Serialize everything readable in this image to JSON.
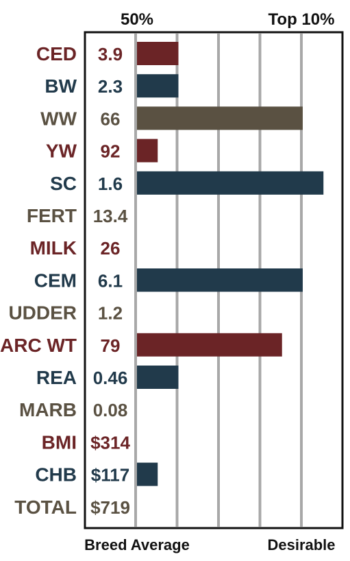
{
  "colors": {
    "red": "#6b2426",
    "blue": "#213a4b",
    "gray": "#5a5142",
    "grid": "#a8a8a8",
    "frame": "#111111"
  },
  "chart_data": {
    "type": "bar",
    "orientation": "horizontal",
    "top_labels": [
      "50%",
      "Top 10%"
    ],
    "bottom_labels": [
      "Breed Average",
      "Desirable"
    ],
    "categories": [
      "CED",
      "BW",
      "WW",
      "YW",
      "SC",
      "FERT",
      "MILK",
      "CEM",
      "UDDER",
      "CARC WT",
      "REA",
      "MARB",
      "BMI",
      "CHB",
      "TOTAL"
    ],
    "value_labels": [
      "3.9",
      "2.3",
      "66",
      "92",
      "1.6",
      "13.4",
      "26",
      "6.1",
      "1.2",
      "79",
      "0.46",
      "0.08",
      "$314",
      "$117",
      "$719"
    ],
    "label_colors": [
      "red",
      "blue",
      "gray",
      "red",
      "blue",
      "gray",
      "red",
      "blue",
      "gray",
      "red",
      "blue",
      "gray",
      "red",
      "blue",
      "gray"
    ],
    "bar_lengths": [
      1,
      1,
      4,
      0.5,
      4.5,
      0,
      0,
      4,
      0,
      3.5,
      1,
      0,
      0,
      0.5,
      0
    ],
    "xlim": [
      0,
      5
    ],
    "grid": true
  }
}
